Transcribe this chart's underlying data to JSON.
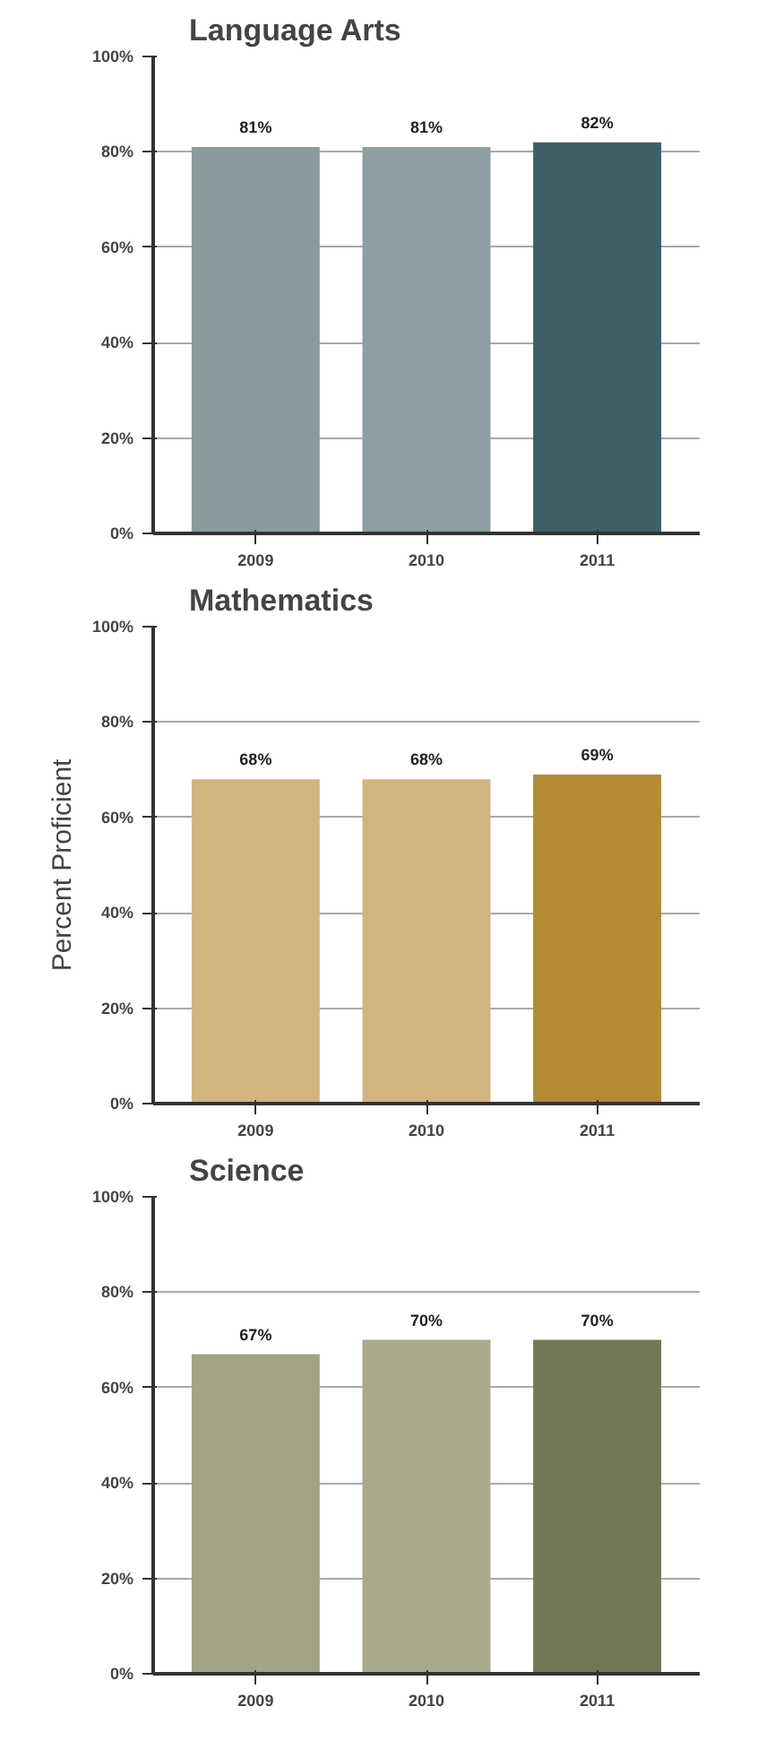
{
  "chart_data": [
    {
      "type": "bar",
      "title": "Language Arts",
      "categories": [
        "2009",
        "2010",
        "2011"
      ],
      "values": [
        81,
        81,
        82
      ],
      "colors": [
        "#8a9ba0",
        "#8e9fa4",
        "#3d6066"
      ],
      "value_labels": [
        "81%",
        "81%",
        "82%"
      ],
      "ylim": [
        0,
        100
      ],
      "yticks": [
        {
          "value": 0,
          "label": "0%"
        },
        {
          "value": 20,
          "label": "20%"
        },
        {
          "value": 40,
          "label": "40%"
        },
        {
          "value": 60,
          "label": "60%"
        },
        {
          "value": 80,
          "label": "80%"
        },
        {
          "value": 100,
          "label": "100%"
        }
      ],
      "grid": "y"
    },
    {
      "type": "bar",
      "title": "Mathematics",
      "ylabel": "Percent Proficient",
      "categories": [
        "2009",
        "2010",
        "2011"
      ],
      "values": [
        68,
        68,
        69
      ],
      "colors": [
        "#d4b47e",
        "#d4b47e",
        "#b58a35"
      ],
      "value_labels": [
        "68%",
        "68%",
        "69%"
      ],
      "ylim": [
        0,
        100
      ],
      "yticks": [
        {
          "value": 0,
          "label": "0%"
        },
        {
          "value": 20,
          "label": "20%"
        },
        {
          "value": 40,
          "label": "40%"
        },
        {
          "value": 60,
          "label": "60%"
        },
        {
          "value": 80,
          "label": "80%"
        },
        {
          "value": 100,
          "label": "100%"
        }
      ],
      "grid": "y"
    },
    {
      "type": "bar",
      "title": "Science",
      "categories": [
        "2009",
        "2010",
        "2011"
      ],
      "values": [
        67,
        70,
        70
      ],
      "colors": [
        "#a4a384",
        "#aaa98a",
        "#747852"
      ],
      "value_labels": [
        "67%",
        "70%",
        "70%"
      ],
      "ylim": [
        0,
        100
      ],
      "yticks": [
        {
          "value": 0,
          "label": "0%"
        },
        {
          "value": 20,
          "label": "20%"
        },
        {
          "value": 40,
          "label": "40%"
        },
        {
          "value": 60,
          "label": "60%"
        },
        {
          "value": 80,
          "label": "80%"
        },
        {
          "value": 100,
          "label": "100%"
        }
      ],
      "grid": "y"
    }
  ]
}
